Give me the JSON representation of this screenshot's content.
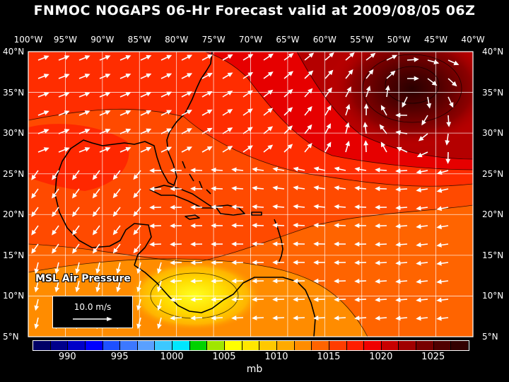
{
  "title": "FNMOC NOGAPS 06-Hr Forecast valid at 2009/08/05 06Z",
  "field_label": "MSL Air Pressure",
  "vector_reference": "10.0 m/s",
  "unit": "mb",
  "lon_labels": [
    "100°W",
    "95°W",
    "90°W",
    "85°W",
    "80°W",
    "75°W",
    "70°W",
    "65°W",
    "60°W",
    "55°W",
    "50°W",
    "45°W",
    "40°W"
  ],
  "lat_labels": [
    "40°N",
    "35°N",
    "30°N",
    "25°N",
    "20°N",
    "15°N",
    "10°N",
    "5°N"
  ],
  "colorbar": {
    "tick_labels": [
      "990",
      "995",
      "1000",
      "1005",
      "1010",
      "1015",
      "1020",
      "1025"
    ],
    "colors": [
      "#000066",
      "#00008c",
      "#0000c8",
      "#0000ff",
      "#1e50ff",
      "#3c78ff",
      "#5aa0ff",
      "#3cc8ff",
      "#00e6ff",
      "#00d200",
      "#a0e600",
      "#ffff00",
      "#ffe600",
      "#ffc800",
      "#ffaa00",
      "#ff8c00",
      "#ff6400",
      "#ff3c00",
      "#ff1e00",
      "#f00000",
      "#c80000",
      "#a00000",
      "#780000",
      "#500000",
      "#320000"
    ]
  },
  "pressure_centers": [
    {
      "type": "high",
      "lon": -49,
      "lat": 34.5,
      "value_mb": 1025
    },
    {
      "type": "low",
      "lon": -79,
      "lat": 10.5,
      "value_mb": 1008
    }
  ],
  "colors": {
    "background": "#000000",
    "text": "#ffffff",
    "grid": "#ffffff",
    "land_outline": "#000000"
  }
}
